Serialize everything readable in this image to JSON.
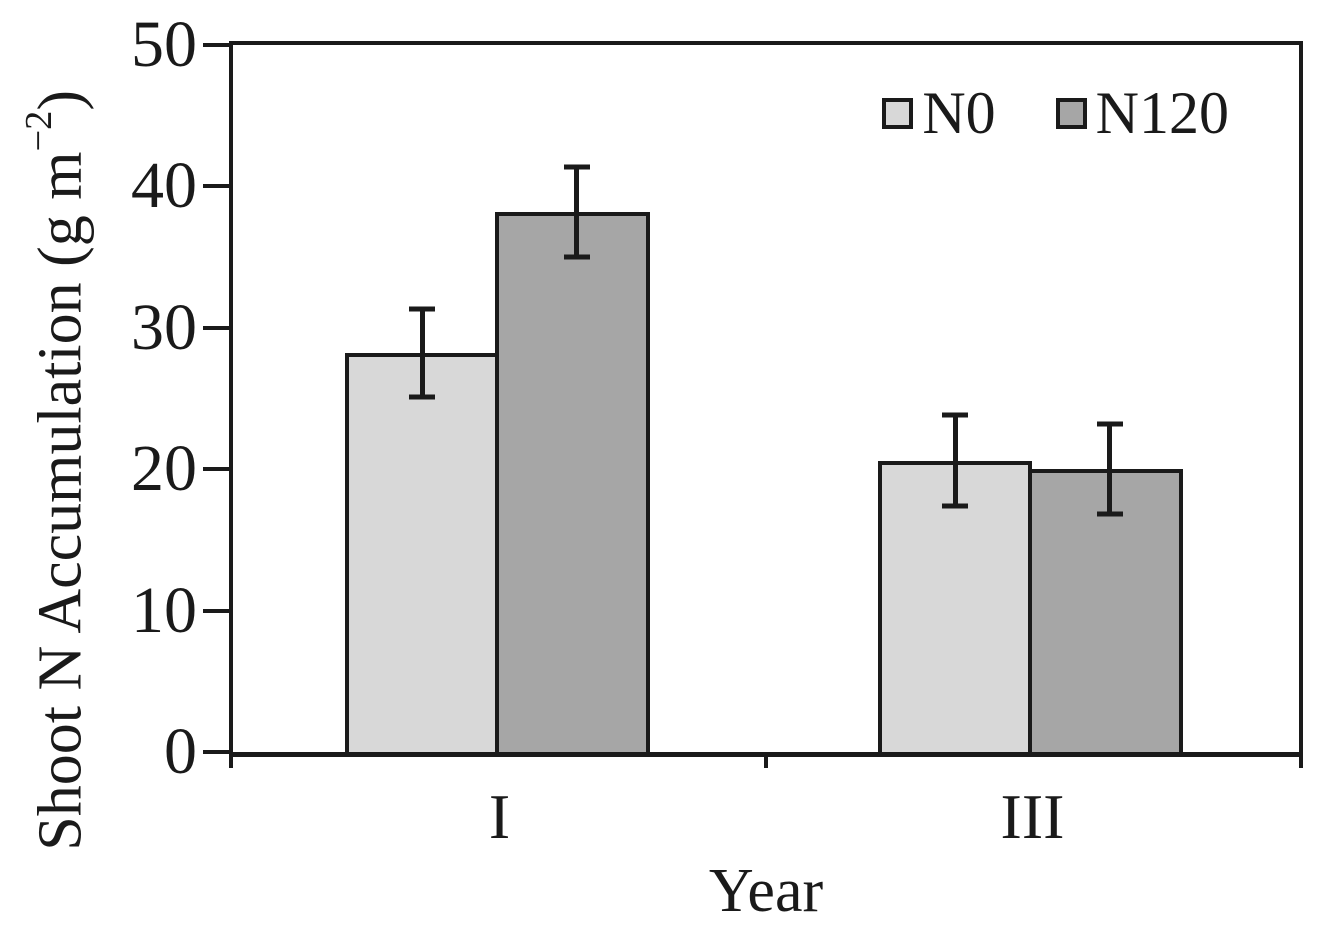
{
  "figure": {
    "background": "#ffffff",
    "text_color": "#1a1a1a",
    "frame_color": "#1a1a1a"
  },
  "chart_data": {
    "type": "bar",
    "title": "",
    "categories": [
      "I",
      "III"
    ],
    "series": [
      {
        "name": "N0",
        "color": "#d8d8d8",
        "values": [
          28.2,
          20.6
        ],
        "errors": [
          3.1,
          3.2
        ]
      },
      {
        "name": "N120",
        "color": "#a6a6a6",
        "values": [
          38.2,
          20.0
        ],
        "errors": [
          3.2,
          3.2
        ]
      }
    ],
    "xlabel": "Year",
    "ylabel": "Shoot N Accumulation (g m−2)",
    "ylabel_parts": {
      "pre": "Shoot N Accumulation (g m",
      "sup": "−2",
      "post": ")"
    },
    "ylim": [
      0,
      50
    ],
    "yticks": [
      0,
      10,
      20,
      30,
      40,
      50
    ],
    "grid": false,
    "legend_position": "top-right-inside",
    "bar_border_color": "#1a1a1a",
    "error_bar_color": "#1a1a1a"
  }
}
